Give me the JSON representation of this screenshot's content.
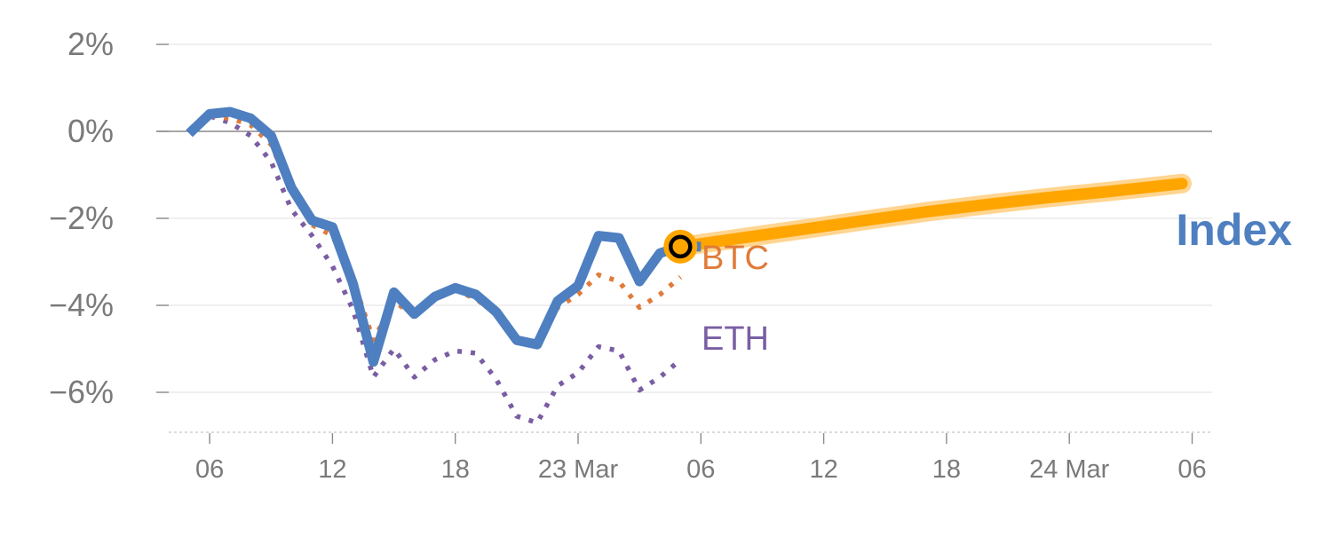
{
  "chart_data": {
    "type": "line",
    "title": "",
    "xlabel": "",
    "ylabel": "",
    "ylim": [
      -6.9,
      2.0
    ],
    "yticks": [
      {
        "value": 2,
        "label": "2%"
      },
      {
        "value": 0,
        "label": "0%"
      },
      {
        "value": -2,
        "label": "−2%"
      },
      {
        "value": -4,
        "label": "−4%"
      },
      {
        "value": -6,
        "label": "−6%"
      }
    ],
    "xticks": [
      {
        "value": 2,
        "label": "06"
      },
      {
        "value": 8,
        "label": "12"
      },
      {
        "value": 14,
        "label": "18"
      },
      {
        "value": 20,
        "label": "23 Mar"
      },
      {
        "value": 26,
        "label": "06"
      },
      {
        "value": 32,
        "label": "12"
      },
      {
        "value": 38,
        "label": "18"
      },
      {
        "value": 44,
        "label": "24 Mar"
      },
      {
        "value": 50,
        "label": "06"
      }
    ],
    "xlim": [
      0,
      51
    ],
    "series": [
      {
        "name": "Index",
        "style": "solid",
        "color": "#4e7fc0",
        "x": [
          1,
          2,
          3,
          4,
          5,
          6,
          7,
          8,
          9,
          10,
          11,
          12,
          13,
          14,
          15,
          16,
          17,
          18,
          19,
          20,
          21,
          22,
          23,
          24,
          25,
          26
        ],
        "values": [
          -0.05,
          0.4,
          0.45,
          0.3,
          -0.1,
          -1.3,
          -2.05,
          -2.2,
          -3.5,
          -5.3,
          -3.7,
          -4.2,
          -3.8,
          -3.6,
          -3.75,
          -4.15,
          -4.8,
          -4.9,
          -3.9,
          -3.55,
          -2.4,
          -2.45,
          -3.45,
          -2.8,
          -2.65,
          -2.65
        ]
      },
      {
        "name": "BTC",
        "style": "dotted",
        "color": "#e07b39",
        "x": [
          1,
          2,
          3,
          4,
          5,
          6,
          7,
          8,
          9,
          10,
          11,
          12,
          13,
          14,
          15,
          16,
          17,
          18,
          19,
          20,
          21,
          22,
          23,
          24,
          25
        ],
        "values": [
          0,
          0.35,
          0.3,
          0.15,
          -0.3,
          -1.4,
          -2.15,
          -2.4,
          -3.4,
          -4.8,
          -3.9,
          -4.25,
          -3.85,
          -3.65,
          -3.85,
          -4.2,
          -4.85,
          -4.95,
          -4.05,
          -3.75,
          -3.3,
          -3.45,
          -4.05,
          -3.75,
          -3.35
        ]
      },
      {
        "name": "ETH",
        "style": "dotted",
        "color": "#7a5ea3",
        "x": [
          1,
          2,
          3,
          4,
          5,
          6,
          7,
          8,
          9,
          10,
          11,
          12,
          13,
          14,
          15,
          16,
          17,
          18,
          19,
          20,
          21,
          22,
          23,
          24,
          25
        ],
        "values": [
          0,
          0.35,
          0.2,
          -0.1,
          -0.7,
          -1.8,
          -2.4,
          -3.1,
          -4.1,
          -5.65,
          -5.0,
          -5.65,
          -5.25,
          -5.05,
          -5.1,
          -5.7,
          -6.55,
          -6.7,
          -5.85,
          -5.55,
          -4.95,
          -5.05,
          -5.95,
          -5.65,
          -5.25
        ]
      },
      {
        "name": "",
        "style": "projection",
        "color": "#ffa500",
        "x": [
          25,
          28,
          31,
          34,
          37,
          40,
          43,
          46,
          49.5
        ],
        "values": [
          -2.65,
          -2.45,
          -2.25,
          -2.05,
          -1.85,
          -1.68,
          -1.52,
          -1.38,
          -1.2
        ]
      }
    ],
    "marker": {
      "x": 25,
      "value": -2.65,
      "fill": "#ffa500",
      "inner": "#000000"
    },
    "grid": true,
    "legend": "inline-labels"
  }
}
